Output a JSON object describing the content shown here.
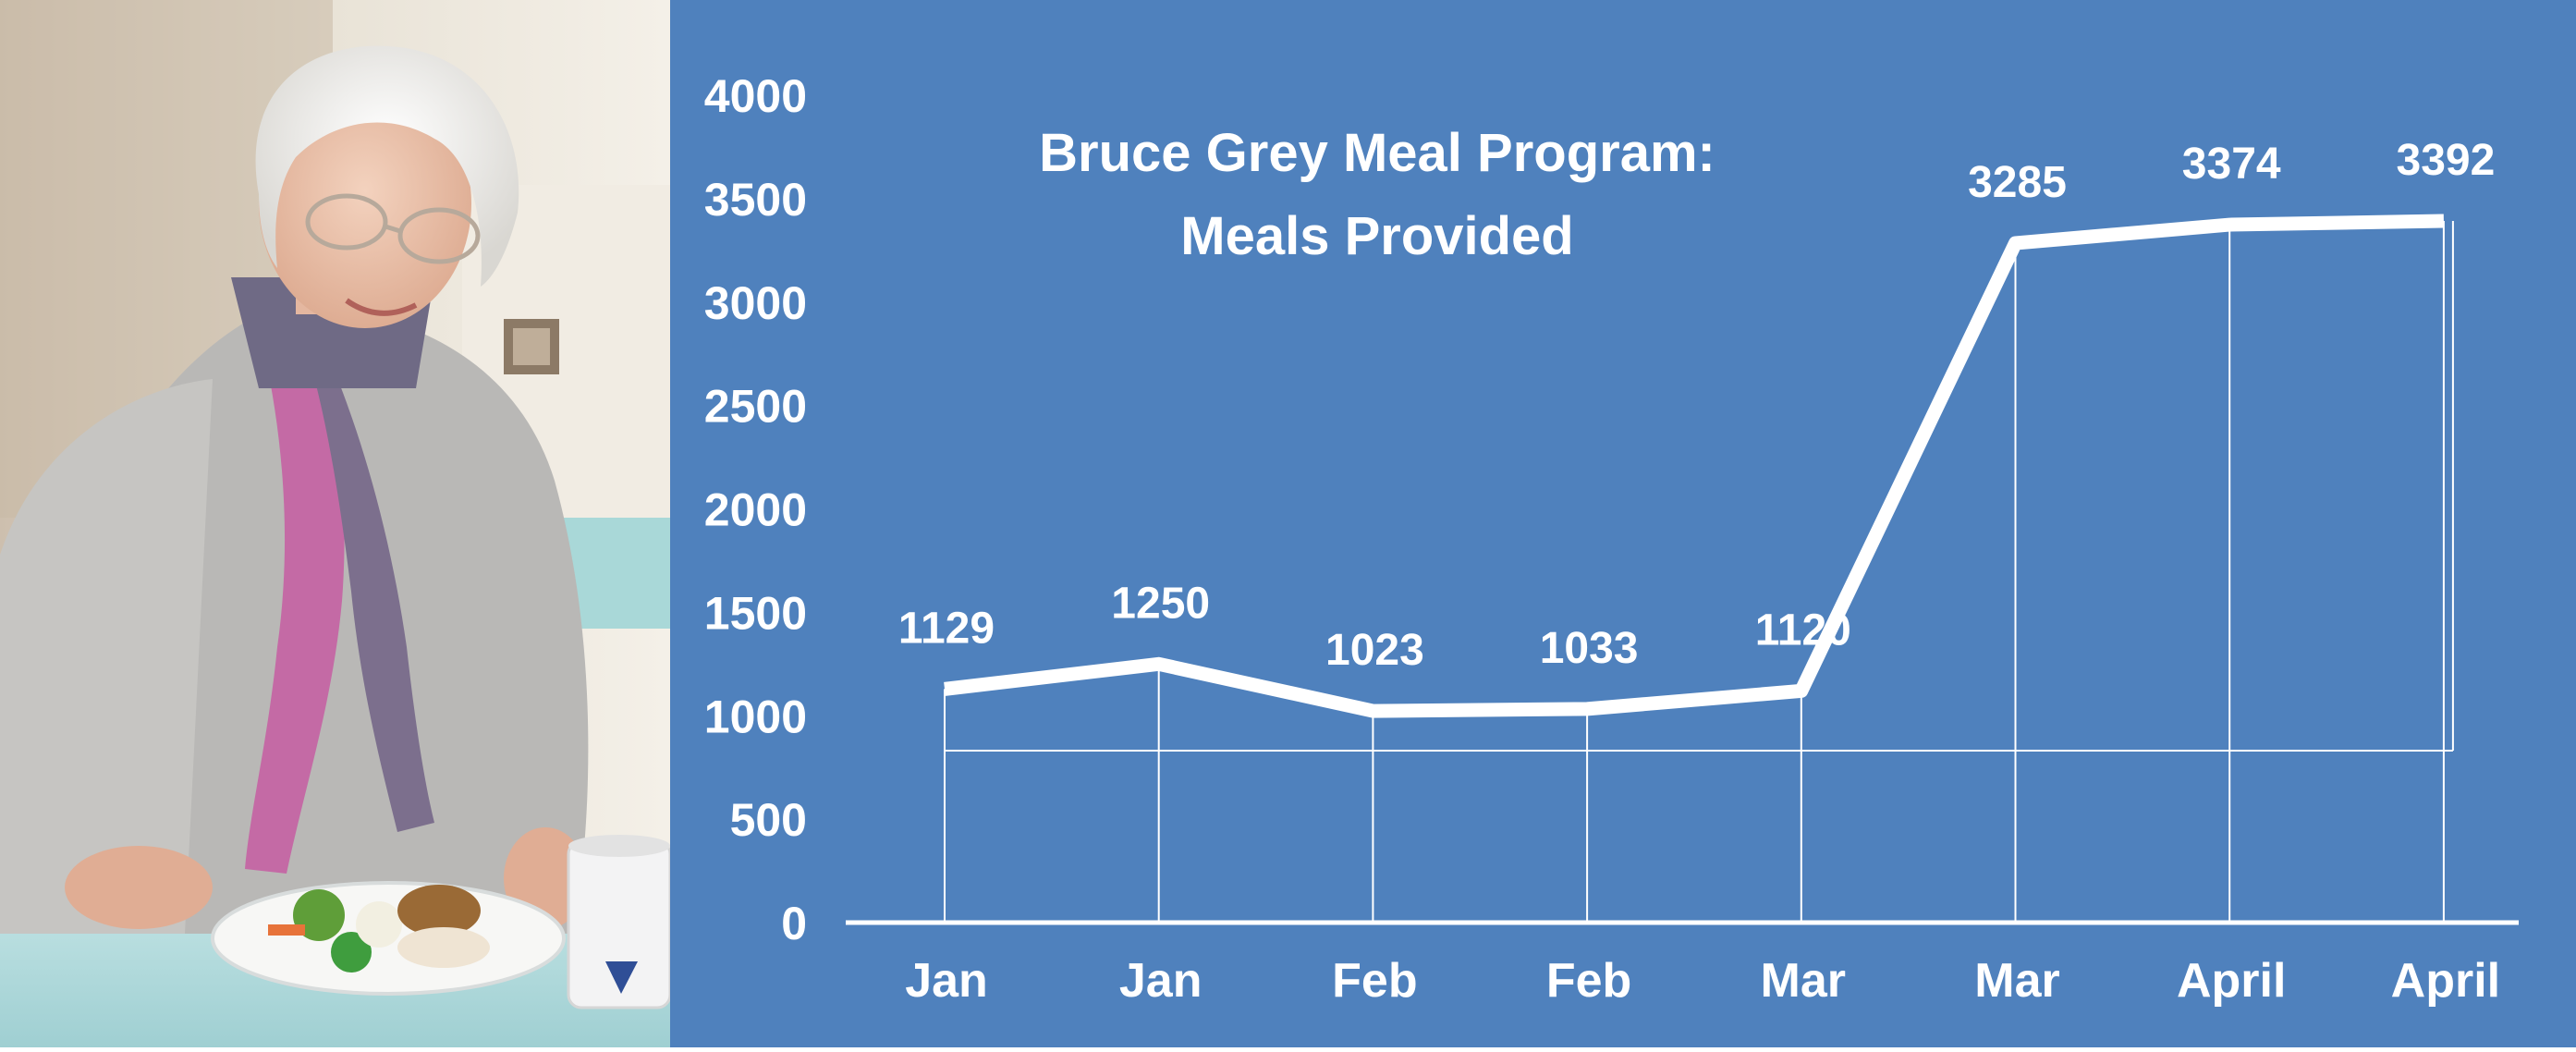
{
  "colors": {
    "panel_background": "#4f81bd",
    "line": "#ffffff"
  },
  "photo": {
    "description_icon": "photo-elderly-woman-with-meal"
  },
  "chart_data": {
    "type": "line",
    "title_line1": "Bruce Grey Meal Program:",
    "title_line2": "Meals Provided",
    "categories": [
      "Jan",
      "Jan",
      "Feb",
      "Feb",
      "Mar",
      "Mar",
      "April",
      "April"
    ],
    "series": [
      {
        "values": [
          1129,
          1250,
          1023,
          1033,
          1120,
          3285,
          3374,
          3392
        ]
      }
    ],
    "y_ticks": [
      "0",
      "500",
      "1000",
      "1500",
      "2000",
      "2500",
      "3000",
      "3500",
      "4000"
    ],
    "ylim": [
      0,
      4000
    ],
    "grid": false,
    "legend": "none"
  }
}
